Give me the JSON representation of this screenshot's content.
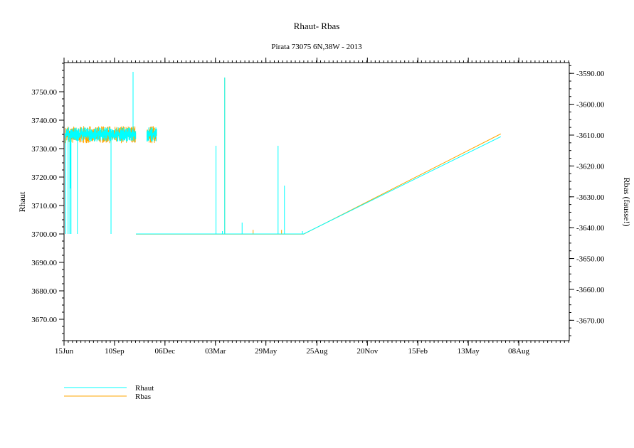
{
  "chart_data": {
    "type": "line",
    "title": "Rhaut-  Rbas",
    "subtitle": "Pirata 73075 6N,38W - 2013",
    "ylabel": "Rhaut",
    "ylabel_right": "Rbas (fausse!)",
    "xlim": [
      "2013-06-15",
      "2015-11-03"
    ],
    "ylim": [
      3662.5,
      3760.25
    ],
    "ylim_right": [
      -3676.6,
      -3586.5
    ],
    "x_ticks": [
      {
        "date": "2013-06-15",
        "label": "15Jun"
      },
      {
        "date": "2013-09-10",
        "label": "10Sep"
      },
      {
        "date": "2013-12-06",
        "label": "06Dec"
      },
      {
        "date": "2014-03-03",
        "label": "03Mar"
      },
      {
        "date": "2014-05-29",
        "label": "29May"
      },
      {
        "date": "2014-08-25",
        "label": "25Aug"
      },
      {
        "date": "2014-11-20",
        "label": "20Nov"
      },
      {
        "date": "2015-02-15",
        "label": "15Feb"
      },
      {
        "date": "2015-05-13",
        "label": "13May"
      },
      {
        "date": "2015-08-08",
        "label": "08Aug"
      }
    ],
    "y_ticks": [
      3670,
      3680,
      3690,
      3700,
      3710,
      3720,
      3730,
      3740,
      3750
    ],
    "y_tick_labels": [
      "3670.00",
      "3680.00",
      "3690.00",
      "3700.00",
      "3710.00",
      "3720.00",
      "3730.00",
      "3740.00",
      "3750.00"
    ],
    "y_ticks_right": [
      -3670,
      -3660,
      -3650,
      -3640,
      -3630,
      -3620,
      -3610,
      -3600,
      -3590
    ],
    "y_tick_labels_right": [
      "-3670.00",
      "-3660.00",
      "-3650.00",
      "-3640.00",
      "-3630.00",
      "-3620.00",
      "-3610.00",
      "-3600.00",
      "-3590.00"
    ],
    "grid": false,
    "legend_placement": "bottom-left",
    "series": [
      {
        "name": "Rhaut",
        "color": "#00ffff",
        "axis": "left",
        "noise_bands": [
          {
            "start": "2013-06-17",
            "end": "2013-10-17",
            "min": 3732.5,
            "max": 3737.5
          },
          {
            "start": "2013-11-05",
            "end": "2013-11-22",
            "min": 3732.5,
            "max": 3737.5
          }
        ],
        "line": [
          [
            "2013-10-17",
            3700
          ],
          [
            "2013-11-05",
            3700
          ],
          [
            "2013-11-22",
            3700
          ],
          [
            "2014-08-02",
            3700
          ],
          [
            "2015-07-08",
            3734.2
          ]
        ],
        "spikes": [
          [
            "2013-06-18",
            3700
          ],
          [
            "2013-06-22",
            3700
          ],
          [
            "2013-06-25",
            3700
          ],
          [
            "2013-06-26",
            3716
          ],
          [
            "2013-06-27",
            3700
          ],
          [
            "2013-07-08",
            3700
          ],
          [
            "2013-09-04",
            3700
          ],
          [
            "2013-10-12",
            3757
          ],
          [
            "2014-03-04",
            3731
          ],
          [
            "2014-03-15",
            3701
          ],
          [
            "2014-03-19",
            3755
          ],
          [
            "2014-04-18",
            3704
          ],
          [
            "2014-06-19",
            3731
          ],
          [
            "2014-06-30",
            3717
          ],
          [
            "2014-07-31",
            3701
          ]
        ]
      },
      {
        "name": "Rbas",
        "color": "#ffa500",
        "axis": "right",
        "noise_bands": [
          {
            "start": "2013-06-17",
            "end": "2013-10-17",
            "min": -3612.6,
            "max": -3607.1
          },
          {
            "start": "2013-11-05",
            "end": "2013-11-22",
            "min": -3612.6,
            "max": -3607.1
          }
        ],
        "line": [
          [
            "2013-10-17",
            -3642.1
          ],
          [
            "2013-11-05",
            -3642.1
          ],
          [
            "2013-11-22",
            -3642.1
          ],
          [
            "2014-08-02",
            -3642.1
          ],
          [
            "2015-07-08",
            -3609.6
          ]
        ],
        "spikes": [
          [
            "2013-10-12",
            -3589.9
          ],
          [
            "2014-03-19",
            -3591.4
          ],
          [
            "2014-05-07",
            -3640.7
          ],
          [
            "2014-06-25",
            -3640.7
          ]
        ]
      }
    ]
  }
}
